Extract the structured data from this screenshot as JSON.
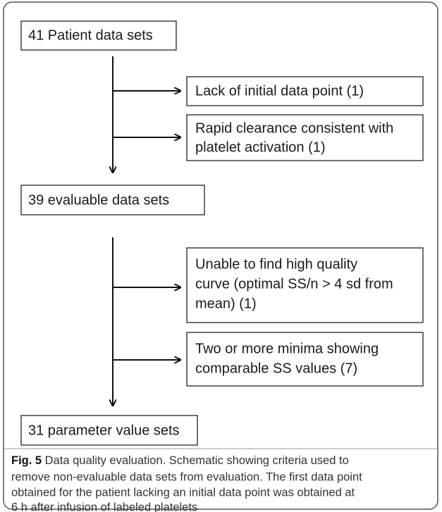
{
  "nodes": [
    {
      "lines": [
        "41 Patient data sets"
      ]
    },
    {
      "lines": [
        "Lack of initial data point (1)"
      ]
    },
    {
      "lines": [
        "Rapid clearance consistent with",
        "platelet activation (1)"
      ]
    },
    {
      "lines": [
        "39 evaluable data sets"
      ]
    },
    {
      "lines": [
        "Unable to find high quality",
        "curve (optimal SS/n > 4 sd from",
        "mean) (1)"
      ]
    },
    {
      "lines": [
        "Two or more minima showing",
        "comparable SS values (7)"
      ]
    },
    {
      "lines": [
        "31 parameter value sets"
      ]
    }
  ],
  "caption": {
    "label": "Fig. 5",
    "lines": [
      " Data quality evaluation. Schematic showing criteria used to",
      "remove non-evaluable data sets from evaluation. The first data point",
      "obtained for the patient lacking an initial data point was obtained at",
      "6 h after infusion of labeled platelets"
    ]
  }
}
